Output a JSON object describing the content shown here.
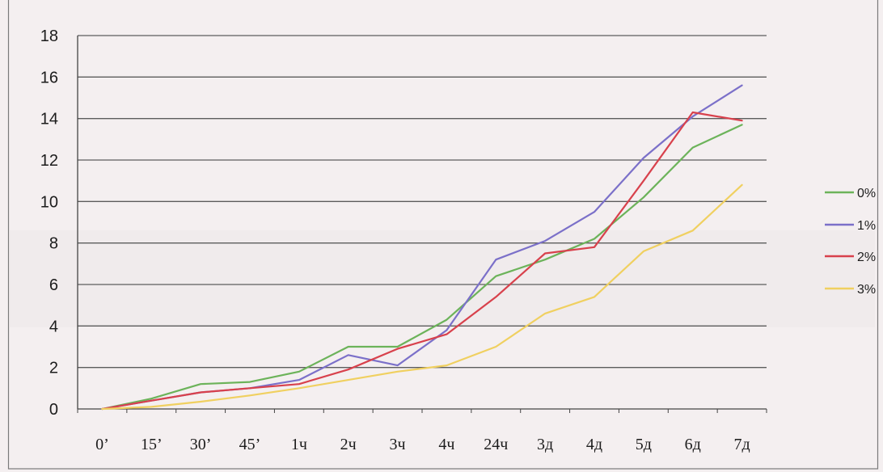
{
  "chart_data": {
    "type": "line",
    "categories": [
      "0’",
      "15’",
      "30’",
      "45’",
      "1ч",
      "2ч",
      "3ч",
      "4ч",
      "24ч",
      "3д",
      "4д",
      "5д",
      "6д",
      "7д"
    ],
    "series": [
      {
        "name": "0%",
        "color": "#6cb35a",
        "values": [
          0,
          0.5,
          1.2,
          1.3,
          1.8,
          3.0,
          3.0,
          4.3,
          6.4,
          7.2,
          8.2,
          10.2,
          12.6,
          13.7
        ]
      },
      {
        "name": "1%",
        "color": "#7b70c9",
        "values": [
          0,
          0.4,
          0.8,
          1.0,
          1.4,
          2.6,
          2.1,
          3.8,
          7.2,
          8.1,
          9.5,
          12.1,
          14.1,
          15.6
        ]
      },
      {
        "name": "2%",
        "color": "#d8414c",
        "values": [
          0,
          0.4,
          0.8,
          1.0,
          1.2,
          1.9,
          2.9,
          3.6,
          5.4,
          7.5,
          7.8,
          11.0,
          14.3,
          13.9
        ]
      },
      {
        "name": "3%",
        "color": "#f0d060",
        "values": [
          0,
          0.1,
          0.35,
          0.65,
          1.0,
          1.4,
          1.8,
          2.1,
          3.0,
          4.6,
          5.4,
          7.6,
          8.6,
          10.8
        ]
      }
    ],
    "ylim": [
      0,
      18
    ],
    "yticks": [
      0,
      2,
      4,
      6,
      8,
      10,
      12,
      14,
      16,
      18
    ],
    "grid": true,
    "legend_position": "right"
  },
  "colors": {
    "background": "#f4eff0",
    "grid": "#5c5c5c",
    "axis": "#444444",
    "frame": "#7a7a7a"
  }
}
